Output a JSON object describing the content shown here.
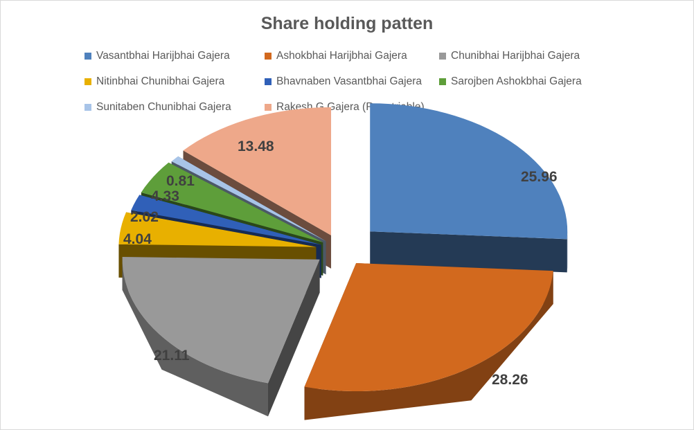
{
  "chart_data": {
    "type": "pie",
    "title": "Share holding patten",
    "legend_position": "top",
    "series": [
      {
        "name": "Vasantbhai Harijbhai Gajera",
        "value": 25.96,
        "label": "25.96",
        "color": "#4f81bd"
      },
      {
        "name": "Ashokbhai Harijbhai Gajera",
        "value": 28.26,
        "label": "28.26",
        "color": "#d2691e"
      },
      {
        "name": "Chunibhai Harijbhai Gajera",
        "value": 21.11,
        "label": "21.11",
        "color": "#999999"
      },
      {
        "name": "Nitinbhai Chunibhai Gajera",
        "value": 4.04,
        "label": "4.04",
        "color": "#e8b000"
      },
      {
        "name": "Bhavnaben Vasantbhai Gajera",
        "value": 2.02,
        "label": "2.02",
        "color": "#3060b8"
      },
      {
        "name": "Sarojben Ashokbhai Gajera",
        "value": 4.33,
        "label": "4.33",
        "color": "#5e9e3a"
      },
      {
        "name": "Sunitaben Chunibhai Gajera",
        "value": 0.81,
        "label": "0.81",
        "color": "#a8c4e8"
      },
      {
        "name": "Rakesh G Gajera (Repatriable)",
        "value": 13.48,
        "label": "13.48",
        "color": "#eea88a"
      }
    ]
  }
}
